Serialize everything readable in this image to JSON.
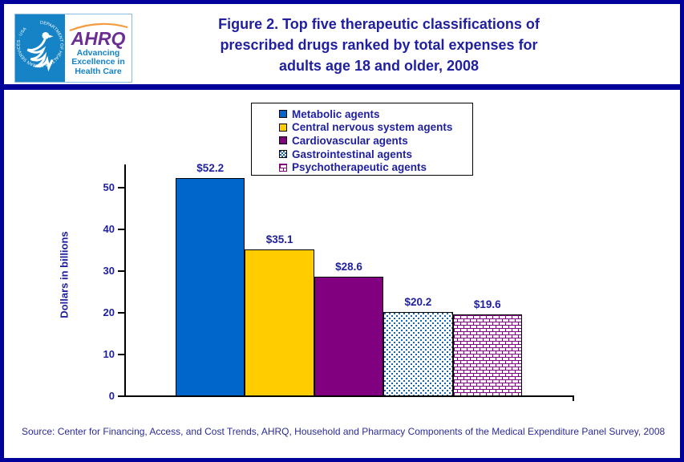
{
  "header": {
    "logo": {
      "seal_text": "DEPARTMENT OF HEALTH & HUMAN SERVICES · USA",
      "acronym": "AHRQ",
      "tagline_lines": [
        "Advancing",
        "Excellence in",
        "Health Care"
      ]
    },
    "title_lines": [
      "Figure 2. Top five therapeutic classifications of",
      "prescribed drugs ranked by total expenses for",
      "adults age 18 and older, 2008"
    ]
  },
  "chart_data": {
    "type": "bar",
    "title": "Figure 2. Top five therapeutic classifications of prescribed drugs ranked by total expenses for adults age 18 and older, 2008",
    "categories": [
      "Metabolic agents",
      "Central nervous system agents",
      "Cardiovascular agents",
      "Gastrointestinal agents",
      "Psychotherapeutic agents"
    ],
    "values": [
      52.2,
      35.1,
      28.6,
      20.2,
      19.6
    ],
    "value_labels": [
      "$52.2",
      "$35.1",
      "$28.6",
      "$20.2",
      "$19.6"
    ],
    "xlabel": "",
    "ylabel": "Dollars in billions",
    "ylim": [
      0,
      55.5
    ],
    "yticks": [
      0,
      10,
      20,
      30,
      40,
      50
    ],
    "grid": false,
    "legend_position": "top-center-inside",
    "bar_styles": [
      {
        "fill": "#0066CC",
        "pattern": "solid"
      },
      {
        "fill": "#FFCC00",
        "pattern": "solid"
      },
      {
        "fill": "#800080",
        "pattern": "solid"
      },
      {
        "fill": "#1565C0",
        "pattern": "dots"
      },
      {
        "fill": "#800080",
        "pattern": "bricks"
      }
    ]
  },
  "source_note": "Source: Center for Financing, Access, and Cost Trends, AHRQ, Household and Pharmacy Components of the Medical Expenditure Panel Survey, 2008",
  "colors": {
    "frame_navy": "#00009A",
    "text_navy": "#1F1F9F",
    "axis": "#000000",
    "hhs_blue": "#1583C5",
    "ahrq_purple": "#6B2E93",
    "arc_orange": "#F59B3C"
  }
}
